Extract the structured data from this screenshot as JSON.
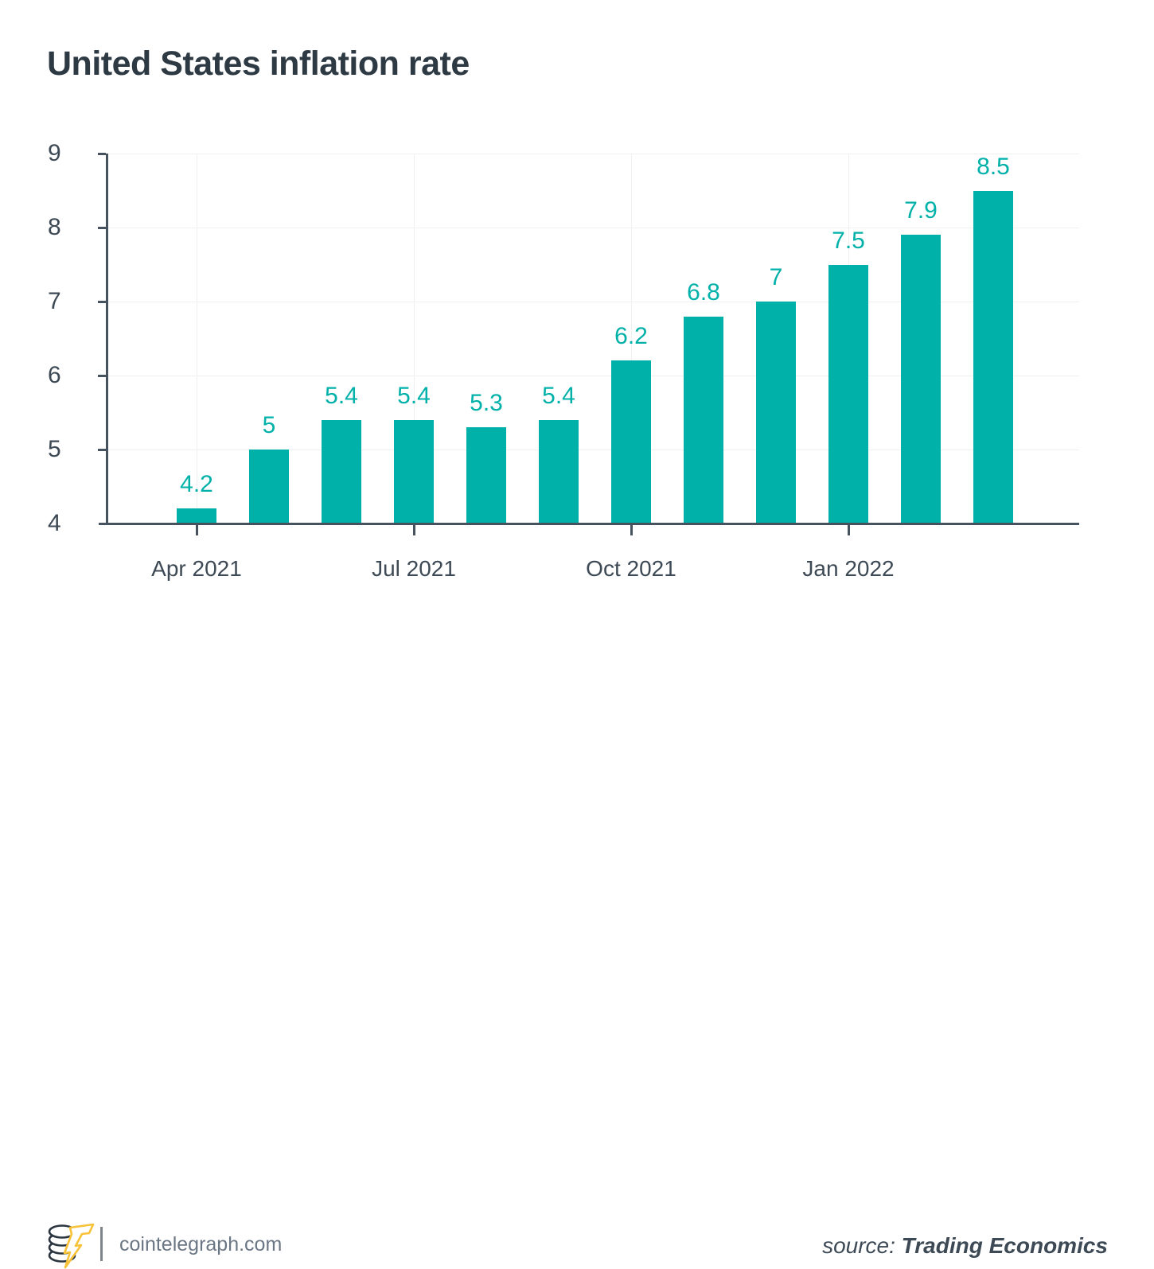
{
  "chart_data": {
    "type": "bar",
    "title": "United States inflation rate",
    "values": [
      4.2,
      5,
      5.4,
      5.4,
      5.3,
      5.4,
      6.2,
      6.8,
      7,
      7.5,
      7.9,
      8.5
    ],
    "bar_value_labels": [
      "4.2",
      "5",
      "5.4",
      "5.4",
      "5.3",
      "5.4",
      "6.2",
      "6.8",
      "7",
      "7.5",
      "7.9",
      "8.5"
    ],
    "x_ticks": [
      {
        "bar_index": 0,
        "label": "Apr 2021"
      },
      {
        "bar_index": 3,
        "label": "Jul 2021"
      },
      {
        "bar_index": 6,
        "label": "Oct 2021"
      },
      {
        "bar_index": 9,
        "label": "Jan 2022"
      }
    ],
    "y_ticks": [
      9,
      8,
      7,
      6,
      5,
      4
    ],
    "ylim": [
      4,
      9
    ],
    "grid": true,
    "legend": "none",
    "colors": {
      "bar": "#00b1a9",
      "bar_label": "#00b1a9",
      "axis": "#46535e",
      "tick_label": "#3d4a55",
      "gridline": "#f0f0f0",
      "title": "#2d3943",
      "background": "#ffffff"
    }
  },
  "footer": {
    "site": "cointelegraph.com",
    "source_prefix": "source:",
    "source_name": "Trading Economics",
    "colors": {
      "site_text": "#6b7684",
      "source_text": "#3d4a55",
      "divider": "#7e868c",
      "logo_coin": "#2b3540",
      "logo_bolt": "#f8c238"
    }
  }
}
